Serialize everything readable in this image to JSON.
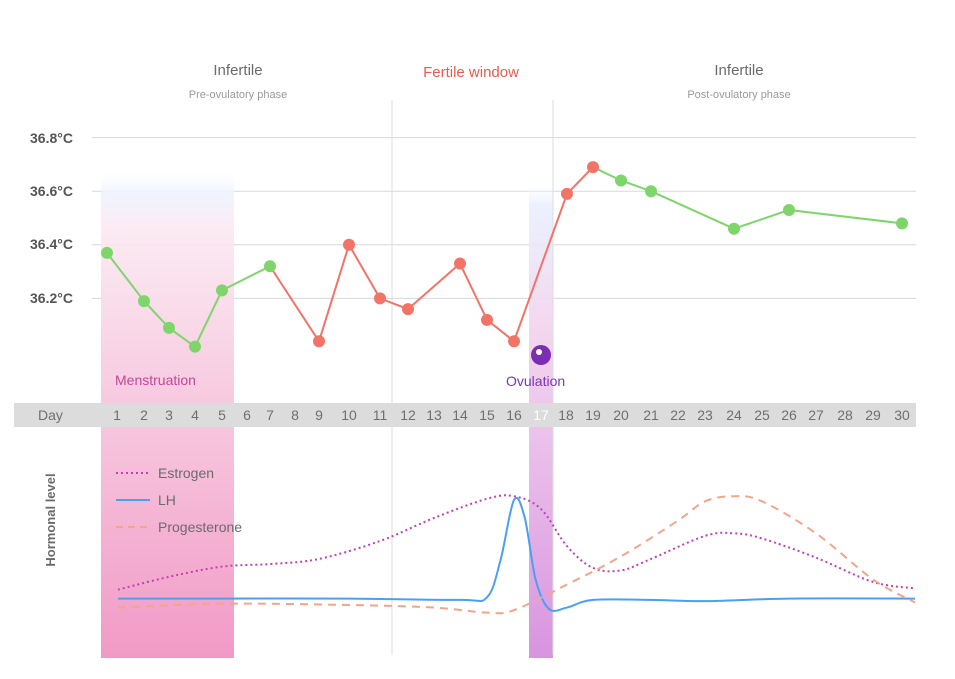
{
  "chart_data": {
    "type": "line",
    "phases": [
      {
        "key": "pre",
        "title": "Infertile",
        "subtitle": "Pre-ovulatory phase",
        "from_day": 1,
        "to_day": 11
      },
      {
        "key": "fertile",
        "title": "Fertile window",
        "subtitle": "",
        "from_day": 11,
        "to_day": 17
      },
      {
        "key": "post",
        "title": "Infertile",
        "subtitle": "Post-ovulatory phase",
        "from_day": 17,
        "to_day": 30
      }
    ],
    "y_axis": {
      "ticks": [
        36.2,
        36.4,
        36.6,
        36.8
      ],
      "tick_labels": [
        "36.2°C",
        "36.4°C",
        "36.6°C",
        "36.8°C"
      ],
      "ylim": [
        36.0,
        36.8
      ]
    },
    "day_axis_label": "Day",
    "days": [
      1,
      2,
      3,
      4,
      5,
      6,
      7,
      8,
      9,
      10,
      11,
      12,
      13,
      14,
      15,
      16,
      17,
      18,
      19,
      20,
      21,
      22,
      23,
      24,
      25,
      26,
      27,
      28,
      29,
      30
    ],
    "highlight_day": 17,
    "temperature_points": [
      {
        "day": 1,
        "temp": 36.37,
        "phase": "infertile"
      },
      {
        "day": 2,
        "temp": 36.19,
        "phase": "infertile"
      },
      {
        "day": 3,
        "temp": 36.09,
        "phase": "infertile"
      },
      {
        "day": 4,
        "temp": 36.02,
        "phase": "infertile"
      },
      {
        "day": 5,
        "temp": 36.23,
        "phase": "infertile"
      },
      {
        "day": 7,
        "temp": 36.32,
        "phase": "infertile"
      },
      {
        "day": 9,
        "temp": 36.04,
        "phase": "fertile"
      },
      {
        "day": 10,
        "temp": 36.4,
        "phase": "fertile"
      },
      {
        "day": 11,
        "temp": 36.2,
        "phase": "fertile"
      },
      {
        "day": 12,
        "temp": 36.16,
        "phase": "fertile"
      },
      {
        "day": 14,
        "temp": 36.33,
        "phase": "fertile"
      },
      {
        "day": 15,
        "temp": 36.12,
        "phase": "fertile"
      },
      {
        "day": 16,
        "temp": 36.04,
        "phase": "fertile"
      },
      {
        "day": 18,
        "temp": 36.59,
        "phase": "fertile"
      },
      {
        "day": 19,
        "temp": 36.69,
        "phase": "fertile"
      },
      {
        "day": 20,
        "temp": 36.64,
        "phase": "infertile"
      },
      {
        "day": 21,
        "temp": 36.6,
        "phase": "infertile"
      },
      {
        "day": 24,
        "temp": 36.46,
        "phase": "infertile"
      },
      {
        "day": 26,
        "temp": 36.53,
        "phase": "infertile"
      },
      {
        "day": 30,
        "temp": 36.48,
        "phase": "infertile"
      }
    ],
    "bands": [
      {
        "key": "menstruation",
        "label": "Menstruation",
        "from_day": 1,
        "to_day": 5
      },
      {
        "key": "ovulation",
        "label": "Ovulation",
        "day": 17
      }
    ],
    "hormone_axis_label": "Hormonal level",
    "hormone_series": [
      {
        "name": "Estrogen",
        "style": "dotted",
        "color": "#c43fb6",
        "points": [
          [
            1,
            0.12
          ],
          [
            3,
            0.22
          ],
          [
            5,
            0.3
          ],
          [
            7,
            0.32
          ],
          [
            9,
            0.36
          ],
          [
            11,
            0.5
          ],
          [
            13,
            0.68
          ],
          [
            15,
            0.83
          ],
          [
            16,
            0.85
          ],
          [
            17,
            0.75
          ],
          [
            18,
            0.46
          ],
          [
            19,
            0.29
          ],
          [
            20,
            0.27
          ],
          [
            21,
            0.36
          ],
          [
            23,
            0.54
          ],
          [
            24,
            0.56
          ],
          [
            25,
            0.52
          ],
          [
            27,
            0.37
          ],
          [
            29,
            0.18
          ],
          [
            30,
            0.13
          ]
        ]
      },
      {
        "name": "LH",
        "style": "solid",
        "color": "#4aa0f0",
        "points": [
          [
            1,
            0.05
          ],
          [
            5,
            0.05
          ],
          [
            10,
            0.05
          ],
          [
            14,
            0.04
          ],
          [
            15,
            0.06
          ],
          [
            15.5,
            0.35
          ],
          [
            16,
            0.82
          ],
          [
            16.4,
            0.68
          ],
          [
            16.8,
            0.2
          ],
          [
            17.3,
            -0.03
          ],
          [
            18,
            -0.02
          ],
          [
            19,
            0.04
          ],
          [
            21,
            0.04
          ],
          [
            23,
            0.03
          ],
          [
            26,
            0.05
          ],
          [
            30,
            0.05
          ]
        ]
      },
      {
        "name": "Progesterone",
        "style": "dashed",
        "color": "#f5a48c",
        "points": [
          [
            1,
            -0.02
          ],
          [
            5,
            0.01
          ],
          [
            10,
            0.0
          ],
          [
            13,
            -0.02
          ],
          [
            15,
            -0.06
          ],
          [
            16,
            -0.04
          ],
          [
            18,
            0.16
          ],
          [
            20,
            0.38
          ],
          [
            22,
            0.66
          ],
          [
            23,
            0.81
          ],
          [
            24,
            0.85
          ],
          [
            25,
            0.81
          ],
          [
            27,
            0.56
          ],
          [
            29,
            0.2
          ],
          [
            30,
            0.02
          ]
        ]
      }
    ],
    "colors": {
      "infertile": "#7ed66a",
      "fertile": "#f27468",
      "grid": "#d8d8d8",
      "day_band": "#dcdcdc",
      "menstruation": "#f2a3c8",
      "ovulation": "#cf8cdd",
      "ovulation_marker": "#7b2db3"
    }
  }
}
